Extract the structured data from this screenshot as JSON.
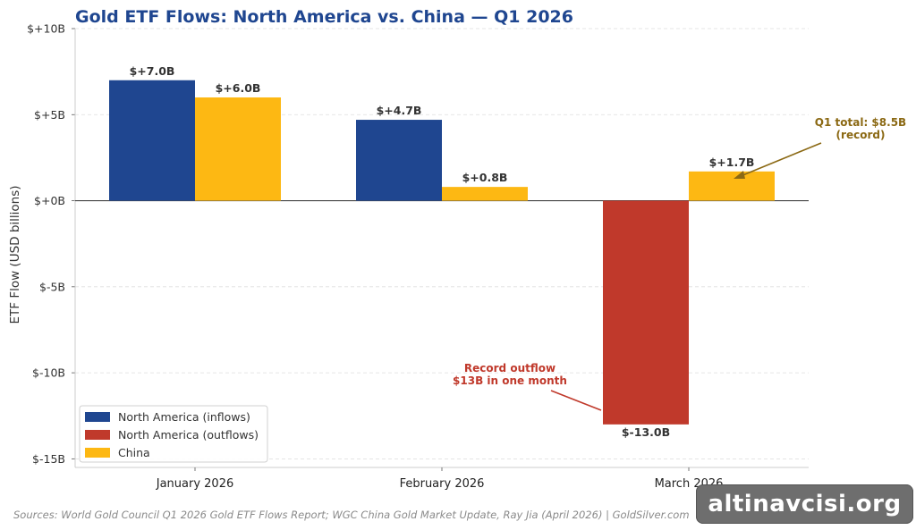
{
  "chart_data": {
    "type": "bar",
    "title": "Gold ETF Flows: North America vs. China — Q1 2026",
    "ylabel": "ETF Flow (USD billions)",
    "xlabel": "",
    "categories": [
      "January 2026",
      "February 2026",
      "March 2026"
    ],
    "ylim": [
      -15.5,
      10
    ],
    "yticks": [
      10,
      5,
      0,
      -5,
      -10,
      -15
    ],
    "ytick_labels": [
      "$+10B",
      "$+5B",
      "$+0B",
      "$-5B",
      "$-10B",
      "$-15B"
    ],
    "grid": true,
    "legend_position": "bottom-left",
    "series": [
      {
        "name": "North America",
        "values": [
          7.0,
          4.7,
          -13.0
        ],
        "data_labels": [
          "$+7.0B",
          "$+4.7B",
          "$-13.0B"
        ]
      },
      {
        "name": "China",
        "values": [
          6.0,
          0.8,
          1.7
        ],
        "data_labels": [
          "$+6.0B",
          "$+0.8B",
          "$+1.7B"
        ]
      }
    ],
    "legend": [
      {
        "label": "North America (inflows)",
        "color": "#1f4690"
      },
      {
        "label": "North America (outflows)",
        "color": "#c0392b"
      },
      {
        "label": "China",
        "color": "#fdb813"
      }
    ],
    "annotations": [
      {
        "lines": [
          "Q1 total: $8.5B",
          "(record)"
        ],
        "color": "#8b6914"
      },
      {
        "lines": [
          "Record outflow",
          "$13B in one month"
        ],
        "color": "#c0392b"
      }
    ]
  },
  "colors": {
    "inflow": "#1f4690",
    "outflow": "#c0392b",
    "china": "#fdb813",
    "title": "#1f4690"
  },
  "source_text": "Sources: World Gold Council Q1 2026 Gold ETF Flows Report; WGC China Gold Market Update, Ray Jia (April 2026) | GoldSilver.com",
  "watermark_text": "altinavcisi.org"
}
